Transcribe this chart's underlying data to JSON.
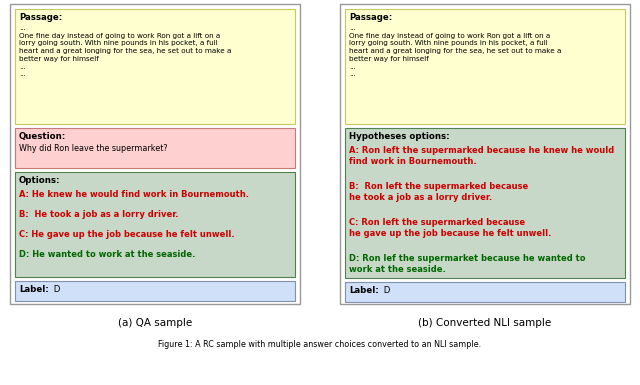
{
  "fig_width": 6.4,
  "fig_height": 3.85,
  "bg_color": "#ffffff",
  "caption": "Figure 1: A RC sample with multiple answer choices converted to an NLI sample.",
  "subcaption_a": "(a) QA sample",
  "subcaption_b": "(b) Converted NLI sample",
  "passage_text": "...\nOne fine day instead of going to work Ron got a lift on a\nlorry going south. With nine pounds in his pocket, a full\nheart and a great longing for the sea, he set out to make a\nbetter way for himself\n...\n...",
  "passage_bg": "#ffffd0",
  "passage_border": "#c8c860",
  "passage_label": "Passage:",
  "question_text": "Why did Ron leave the supermarket?",
  "question_bg": "#ffd0d0",
  "question_border": "#c87878",
  "question_label": "Question:",
  "options_bg": "#c8d8c8",
  "options_border": "#508050",
  "options_label": "Options:",
  "options": [
    {
      "key": "A:",
      "text": " He knew he would find work in Bournemouth.",
      "color": "#cc0000"
    },
    {
      "key": "B: ",
      "text": " He took a job as a lorry driver.",
      "color": "#cc0000"
    },
    {
      "key": "C:",
      "text": " He gave up the job because he felt unwell.",
      "color": "#cc0000"
    },
    {
      "key": "D:",
      "text": " He wanted to work at the seaside.",
      "color": "#006600"
    }
  ],
  "label_bg": "#d0e0f8",
  "label_border": "#8090b0",
  "label_text_a": "Label: D",
  "label_text_b": "Label: D",
  "hyp_bg": "#c8d8c8",
  "hyp_border": "#508050",
  "hyp_label": "Hypotheses options:",
  "hypotheses": [
    {
      "key": "A:",
      "text": " Ron left the supermarked because he knew he would\nfind work in Bournemouth.",
      "color": "#cc0000"
    },
    {
      "key": "B: ",
      "text": " Ron left the supermarked because\nhe took a job as a lorry driver.",
      "color": "#cc0000"
    },
    {
      "key": "C:",
      "text": " Ron left the supermarked because\nhe gave up the job because he felt unwell.",
      "color": "#cc0000"
    },
    {
      "key": "D:",
      "text": " Ron lef the supermarket because he wanted to\nwork at the seaside.",
      "color": "#006600"
    }
  ]
}
